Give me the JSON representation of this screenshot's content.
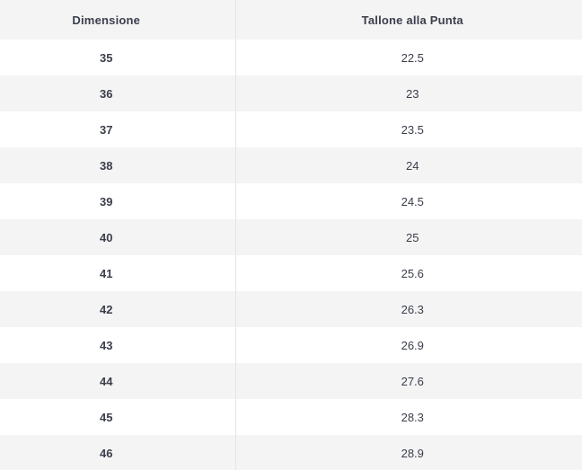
{
  "colors": {
    "stripe_bg": "#f4f4f5",
    "row_bg": "#ffffff",
    "divider": "#e5e5e7",
    "text": "#3b3e4a"
  },
  "table": {
    "columns": [
      {
        "label": "Dimensione"
      },
      {
        "label": "Tallone alla Punta"
      }
    ],
    "rows": [
      {
        "size": "35",
        "length": "22.5"
      },
      {
        "size": "36",
        "length": "23"
      },
      {
        "size": "37",
        "length": "23.5"
      },
      {
        "size": "38",
        "length": "24"
      },
      {
        "size": "39",
        "length": "24.5"
      },
      {
        "size": "40",
        "length": "25"
      },
      {
        "size": "41",
        "length": "25.6"
      },
      {
        "size": "42",
        "length": "26.3"
      },
      {
        "size": "43",
        "length": "26.9"
      },
      {
        "size": "44",
        "length": "27.6"
      },
      {
        "size": "45",
        "length": "28.3"
      },
      {
        "size": "46",
        "length": "28.9"
      }
    ]
  }
}
